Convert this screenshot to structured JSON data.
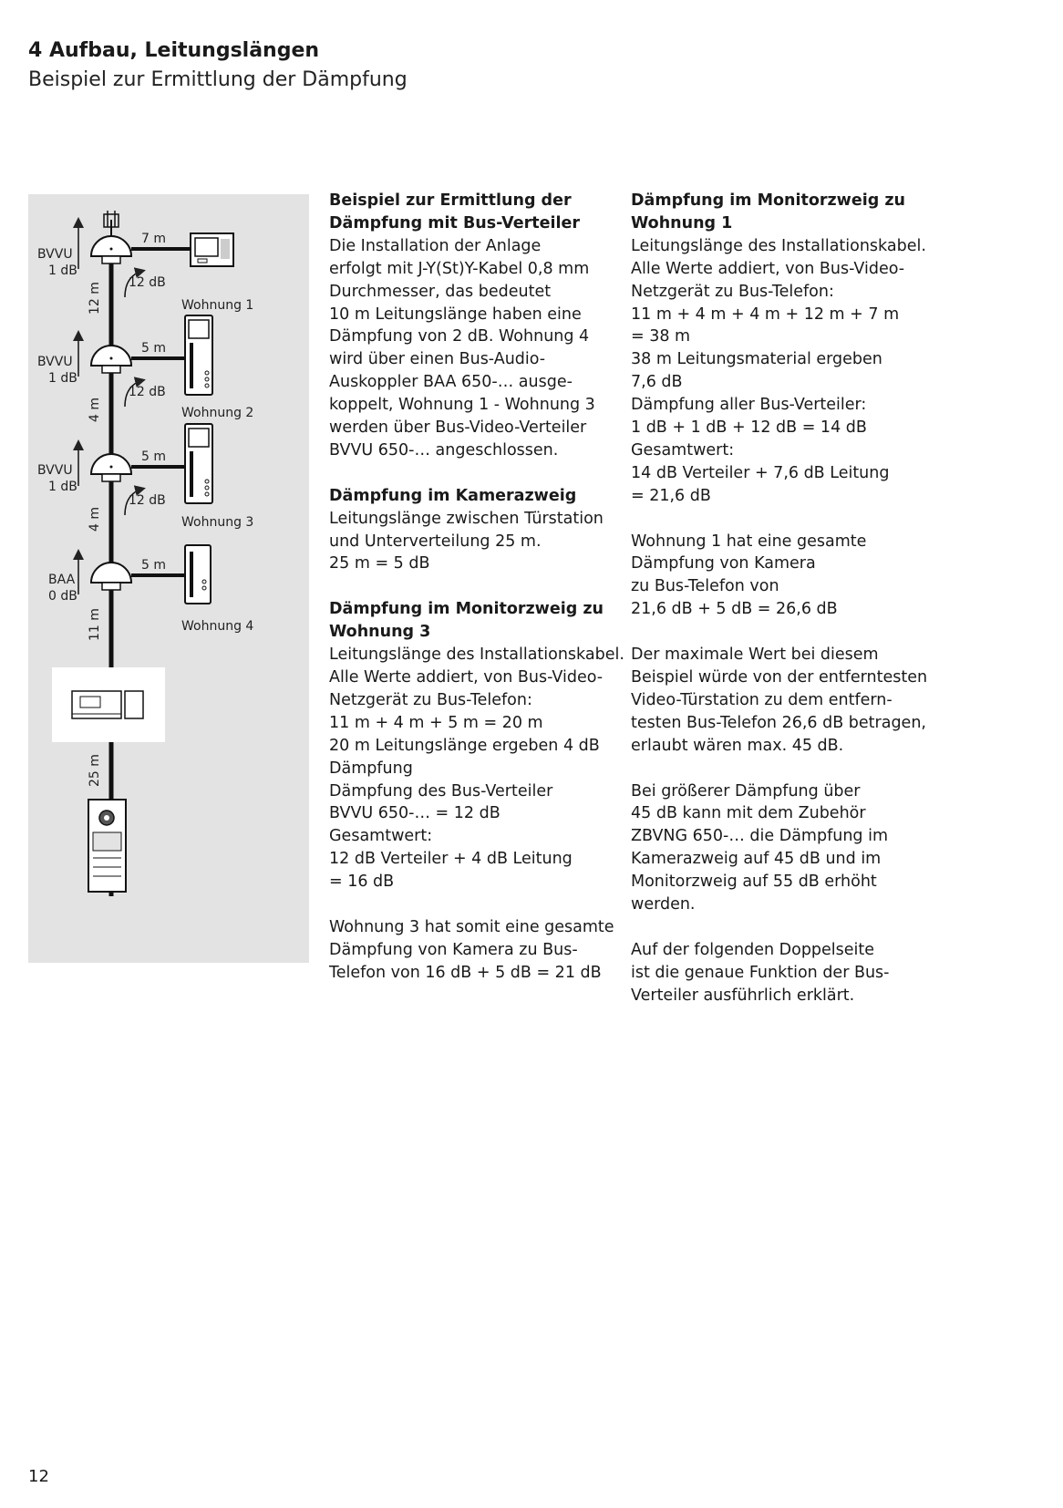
{
  "header": {
    "title": "4 Aufbau, Leitungslängen",
    "subtitle": "Beispiel zur Ermittlung der Dämpfung"
  },
  "diagram": {
    "distributors": [
      {
        "type": "BVVU",
        "value": "1 dB"
      },
      {
        "type": "BVVU",
        "value": "1 dB"
      },
      {
        "type": "BVVU",
        "value": "1 dB"
      },
      {
        "type": "BAA",
        "value": "0 dB"
      }
    ],
    "branch_lengths": [
      "7 m",
      "5 m",
      "5 m",
      "5 m"
    ],
    "attenuations": [
      "12 dB",
      "12 dB",
      "12 dB"
    ],
    "segment_lengths": [
      "12 m",
      "4 m",
      "4 m",
      "11 m",
      "25 m"
    ],
    "apartments": [
      "Wohnung 1",
      "Wohnung 2",
      "Wohnung 3",
      "Wohnung 4"
    ]
  },
  "column1": {
    "lines": [
      {
        "text": "Beispiel zur Ermittlung der",
        "bold": true
      },
      {
        "text": "Dämpfung mit Bus-Verteiler",
        "bold": true
      },
      {
        "text": "Die Installation der Anlage"
      },
      {
        "text": "erfolgt mit J-Y(St)Y-Kabel 0,8 mm"
      },
      {
        "text": "Durchmesser, das bedeutet"
      },
      {
        "text": "10 m Leitungslänge haben eine"
      },
      {
        "text": "Dämpfung von 2 dB. Wohnung 4"
      },
      {
        "text": "wird über einen Bus-Audio-"
      },
      {
        "text": "Auskoppler BAA 650-… ausge-"
      },
      {
        "text": "koppelt, Wohnung 1 - Wohnung 3"
      },
      {
        "text": "werden über Bus-Video-Verteiler"
      },
      {
        "text": "BVVU 650-… angeschlossen."
      },
      {
        "text": ""
      },
      {
        "text": "Dämpfung im Kamerazweig",
        "bold": true
      },
      {
        "text": "Leitungslänge zwischen Türstation"
      },
      {
        "text": "und Unterverteilung 25 m."
      },
      {
        "text": "25 m = 5 dB"
      },
      {
        "text": ""
      },
      {
        "text": "Dämpfung im Monitorzweig zu",
        "bold": true
      },
      {
        "text": "Wohnung 3",
        "bold": true
      },
      {
        "text": "Leitungslänge des Installationskabel."
      },
      {
        "text": "Alle Werte addiert, von Bus-Video-"
      },
      {
        "text": "Netzgerät zu Bus-Telefon:"
      },
      {
        "text": "11 m + 4 m + 5 m = 20 m"
      },
      {
        "text": "20 m Leitungslänge ergeben 4 dB"
      },
      {
        "text": "Dämpfung"
      },
      {
        "text": "Dämpfung des Bus-Verteiler"
      },
      {
        "text": "BVVU 650-… = 12 dB"
      },
      {
        "text": "Gesamtwert:"
      },
      {
        "text": "12 dB Verteiler + 4 dB Leitung"
      },
      {
        "text": "= 16 dB"
      },
      {
        "text": ""
      },
      {
        "text": "Wohnung 3 hat somit eine gesamte"
      },
      {
        "text": "Dämpfung von Kamera zu Bus-"
      },
      {
        "text": "Telefon von 16 dB + 5 dB = 21 dB"
      }
    ]
  },
  "column2": {
    "lines": [
      {
        "text": "Dämpfung im Monitorzweig zu",
        "bold": true
      },
      {
        "text": "Wohnung 1",
        "bold": true
      },
      {
        "text": "Leitungslänge des Installationskabel."
      },
      {
        "text": "Alle Werte addiert, von Bus-Video-"
      },
      {
        "text": "Netzgerät zu Bus-Telefon:"
      },
      {
        "text": "11 m + 4 m + 4 m + 12 m + 7 m"
      },
      {
        "text": "= 38 m"
      },
      {
        "text": "38 m Leitungsmaterial ergeben"
      },
      {
        "text": "7,6 dB"
      },
      {
        "text": "Dämpfung aller Bus-Verteiler:"
      },
      {
        "text": "1 dB + 1 dB + 12 dB = 14 dB"
      },
      {
        "text": "Gesamtwert:"
      },
      {
        "text": "14 dB Verteiler + 7,6 dB Leitung"
      },
      {
        "text": "= 21,6 dB"
      },
      {
        "text": ""
      },
      {
        "text": "Wohnung 1 hat eine gesamte"
      },
      {
        "text": "Dämpfung von Kamera"
      },
      {
        "text": "zu Bus-Telefon von"
      },
      {
        "text": "21,6 dB + 5 dB = 26,6 dB"
      },
      {
        "text": ""
      },
      {
        "text": "Der maximale Wert bei diesem"
      },
      {
        "text": "Beispiel würde von der entferntesten"
      },
      {
        "text": "Video-Türstation zu dem entfern-"
      },
      {
        "text": "testen Bus-Telefon 26,6 dB betragen,"
      },
      {
        "text": "erlaubt wären max. 45 dB."
      },
      {
        "text": ""
      },
      {
        "text": "Bei größerer Dämpfung über"
      },
      {
        "text": "45 dB kann mit dem Zubehör"
      },
      {
        "text": "ZBVNG 650-… die Dämpfung im"
      },
      {
        "text": "Kamerazweig auf 45 dB und im"
      },
      {
        "text": "Monitorzweig auf 55 dB erhöht"
      },
      {
        "text": "werden."
      },
      {
        "text": ""
      },
      {
        "text": "Auf der folgenden Doppelseite"
      },
      {
        "text": "ist die genaue Funktion der Bus-"
      },
      {
        "text": "Verteiler ausführlich erklärt."
      }
    ]
  },
  "footer": {
    "page_number": "12"
  }
}
